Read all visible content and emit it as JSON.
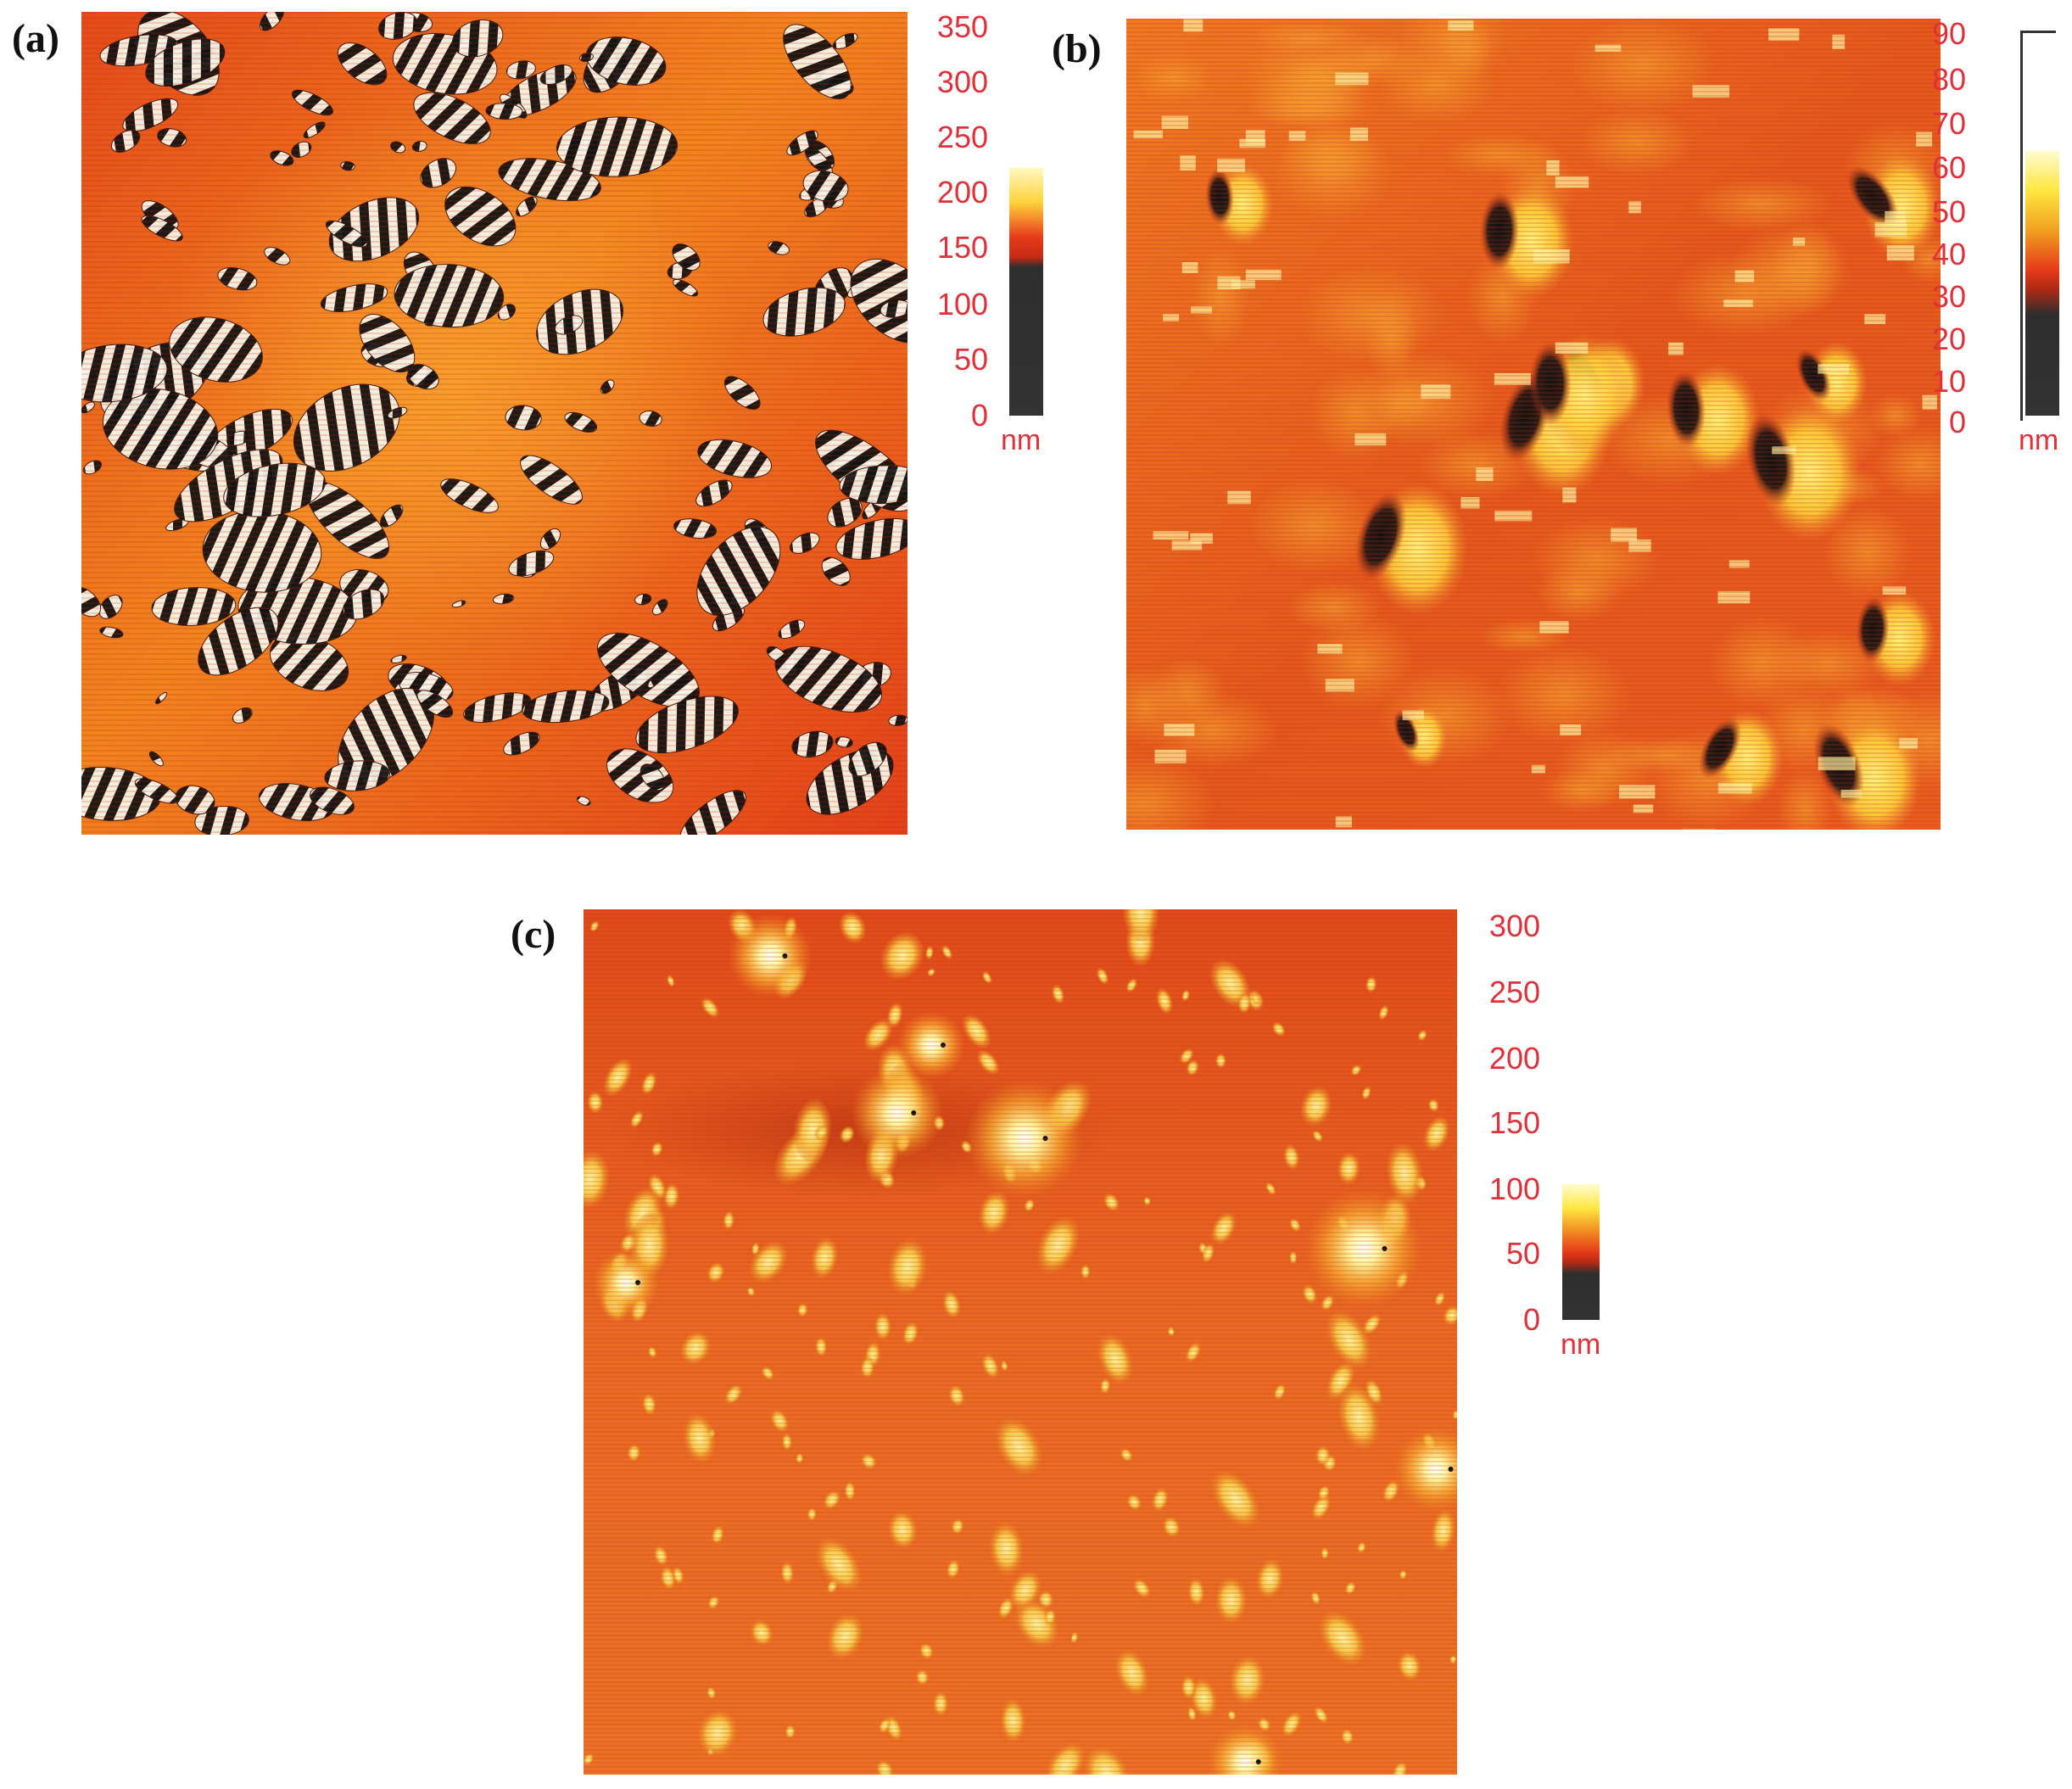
{
  "panels": [
    {
      "id": "a",
      "label": "(a)",
      "scale_ticks": [
        "350",
        "300",
        "250",
        "200",
        "150",
        "100",
        "50",
        "0"
      ],
      "unit": "nm",
      "colors": {
        "base": "#e8461a",
        "dark": "#1a1a1a",
        "light": "#fff3c0"
      }
    },
    {
      "id": "b",
      "label": "(b)",
      "scale_ticks": [
        "90",
        "80",
        "70",
        "60",
        "50",
        "40",
        "30",
        "20",
        "10",
        "0"
      ],
      "unit": "nm",
      "colors": {
        "base": "#e65a1c",
        "dark": "#222222",
        "light": "#ffe866"
      }
    },
    {
      "id": "c",
      "label": "(c)",
      "scale_ticks": [
        "300",
        "250",
        "200",
        "150",
        "100",
        "50",
        "0"
      ],
      "unit": "nm",
      "colors": {
        "base": "#e6561e",
        "dark": "#222222",
        "light": "#fff6b0"
      }
    }
  ],
  "colorbar_gradient": [
    "#fff8c0",
    "#ffd23a",
    "#e63a1a",
    "#3a3a3a"
  ]
}
